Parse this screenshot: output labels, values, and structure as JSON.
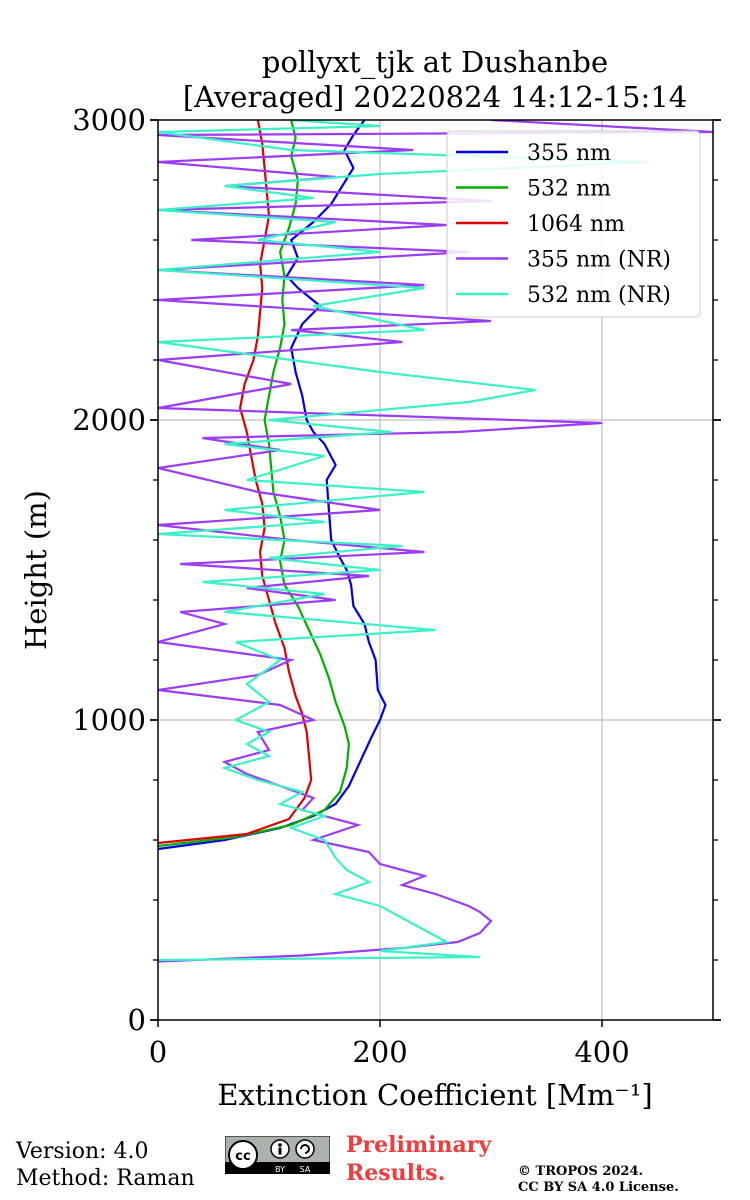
{
  "chart_data": {
    "type": "line",
    "title": [
      "pollyxt_tjk at Dushanbe",
      "[Averaged] 20220824 14:12-15:14"
    ],
    "xlabel": "Extinction Coefficient [Mm⁻¹]",
    "ylabel": "Height (m)",
    "xlim": [
      0,
      500
    ],
    "ylim": [
      0,
      3000
    ],
    "xticks": [
      0,
      200,
      400
    ],
    "yticks": [
      0,
      1000,
      2000,
      3000
    ],
    "grid": true,
    "legend_position": "top-right",
    "series": [
      {
        "name": "355 nm",
        "color": "#0000e6",
        "points": [
          [
            0,
            570
          ],
          [
            60,
            600
          ],
          [
            110,
            640
          ],
          [
            140,
            680
          ],
          [
            160,
            720
          ],
          [
            172,
            780
          ],
          [
            182,
            860
          ],
          [
            192,
            940
          ],
          [
            200,
            1000
          ],
          [
            205,
            1050
          ],
          [
            198,
            1100
          ],
          [
            196,
            1200
          ],
          [
            190,
            1260
          ],
          [
            186,
            1320
          ],
          [
            176,
            1380
          ],
          [
            174,
            1450
          ],
          [
            170,
            1500
          ],
          [
            164,
            1540
          ],
          [
            156,
            1600
          ],
          [
            154,
            1700
          ],
          [
            152,
            1800
          ],
          [
            160,
            1850
          ],
          [
            150,
            1920
          ],
          [
            140,
            1960
          ],
          [
            134,
            2000
          ],
          [
            130,
            2080
          ],
          [
            124,
            2160
          ],
          [
            120,
            2240
          ],
          [
            130,
            2320
          ],
          [
            146,
            2380
          ],
          [
            126,
            2440
          ],
          [
            116,
            2480
          ],
          [
            126,
            2540
          ],
          [
            120,
            2600
          ],
          [
            140,
            2660
          ],
          [
            156,
            2720
          ],
          [
            166,
            2780
          ],
          [
            176,
            2840
          ],
          [
            168,
            2900
          ],
          [
            176,
            2950
          ],
          [
            186,
            3000
          ]
        ]
      },
      {
        "name": "532 nm",
        "color": "#00b000",
        "points": [
          [
            0,
            580
          ],
          [
            70,
            610
          ],
          [
            120,
            650
          ],
          [
            150,
            700
          ],
          [
            164,
            760
          ],
          [
            170,
            840
          ],
          [
            172,
            920
          ],
          [
            168,
            980
          ],
          [
            160,
            1060
          ],
          [
            154,
            1140
          ],
          [
            146,
            1220
          ],
          [
            136,
            1300
          ],
          [
            126,
            1380
          ],
          [
            114,
            1450
          ],
          [
            110,
            1530
          ],
          [
            114,
            1600
          ],
          [
            110,
            1680
          ],
          [
            104,
            1760
          ],
          [
            102,
            1840
          ],
          [
            100,
            1920
          ],
          [
            96,
            2000
          ],
          [
            100,
            2080
          ],
          [
            104,
            2160
          ],
          [
            110,
            2240
          ],
          [
            114,
            2320
          ],
          [
            112,
            2400
          ],
          [
            114,
            2480
          ],
          [
            110,
            2560
          ],
          [
            118,
            2640
          ],
          [
            124,
            2720
          ],
          [
            126,
            2800
          ],
          [
            120,
            2880
          ],
          [
            124,
            2940
          ],
          [
            120,
            3000
          ]
        ]
      },
      {
        "name": "1064 nm",
        "color": "#dd0000",
        "points": [
          [
            0,
            590
          ],
          [
            80,
            620
          ],
          [
            118,
            670
          ],
          [
            132,
            740
          ],
          [
            138,
            800
          ],
          [
            136,
            880
          ],
          [
            134,
            960
          ],
          [
            130,
            1020
          ],
          [
            124,
            1080
          ],
          [
            118,
            1160
          ],
          [
            114,
            1240
          ],
          [
            106,
            1320
          ],
          [
            100,
            1400
          ],
          [
            94,
            1480
          ],
          [
            92,
            1560
          ],
          [
            96,
            1640
          ],
          [
            94,
            1720
          ],
          [
            88,
            1800
          ],
          [
            84,
            1880
          ],
          [
            80,
            1960
          ],
          [
            74,
            2040
          ],
          [
            78,
            2120
          ],
          [
            86,
            2200
          ],
          [
            90,
            2280
          ],
          [
            92,
            2360
          ],
          [
            94,
            2440
          ],
          [
            92,
            2520
          ],
          [
            96,
            2600
          ],
          [
            100,
            2680
          ],
          [
            98,
            2760
          ],
          [
            96,
            2840
          ],
          [
            94,
            2920
          ],
          [
            90,
            3000
          ]
        ]
      },
      {
        "name": "355 nm (NR)",
        "color": "#9b3cf5",
        "points": [
          [
            0,
            195
          ],
          [
            130,
            215
          ],
          [
            220,
            240
          ],
          [
            270,
            260
          ],
          [
            290,
            290
          ],
          [
            300,
            330
          ],
          [
            290,
            360
          ],
          [
            280,
            380
          ],
          [
            250,
            420
          ],
          [
            220,
            450
          ],
          [
            240,
            480
          ],
          [
            200,
            520
          ],
          [
            190,
            560
          ],
          [
            140,
            600
          ],
          [
            180,
            650
          ],
          [
            130,
            700
          ],
          [
            140,
            740
          ],
          [
            110,
            780
          ],
          [
            80,
            820
          ],
          [
            60,
            860
          ],
          [
            100,
            900
          ],
          [
            90,
            960
          ],
          [
            140,
            1000
          ],
          [
            110,
            1050
          ],
          [
            0,
            1100
          ],
          [
            90,
            1150
          ],
          [
            120,
            1200
          ],
          [
            0,
            1260
          ],
          [
            60,
            1320
          ],
          [
            20,
            1360
          ],
          [
            160,
            1400
          ],
          [
            80,
            1440
          ],
          [
            190,
            1480
          ],
          [
            20,
            1520
          ],
          [
            240,
            1560
          ],
          [
            120,
            1600
          ],
          [
            0,
            1650
          ],
          [
            200,
            1700
          ],
          [
            90,
            1760
          ],
          [
            0,
            1840
          ],
          [
            110,
            1900
          ],
          [
            40,
            1940
          ],
          [
            270,
            1960
          ],
          [
            400,
            1990
          ],
          [
            0,
            2040
          ],
          [
            60,
            2080
          ],
          [
            120,
            2120
          ],
          [
            0,
            2200
          ],
          [
            220,
            2260
          ],
          [
            120,
            2300
          ],
          [
            300,
            2330
          ],
          [
            0,
            2400
          ],
          [
            240,
            2450
          ],
          [
            0,
            2500
          ],
          [
            280,
            2560
          ],
          [
            30,
            2600
          ],
          [
            260,
            2650
          ],
          [
            0,
            2700
          ],
          [
            300,
            2730
          ],
          [
            60,
            2780
          ],
          [
            160,
            2810
          ],
          [
            0,
            2860
          ],
          [
            230,
            2900
          ],
          [
            0,
            2950
          ],
          [
            500,
            2960
          ],
          [
            300,
            3000
          ]
        ]
      },
      {
        "name": "532 nm (NR)",
        "color": "#3cf0c8",
        "points": [
          [
            0,
            200
          ],
          [
            290,
            210
          ],
          [
            200,
            230
          ],
          [
            260,
            260
          ],
          [
            240,
            300
          ],
          [
            220,
            340
          ],
          [
            200,
            380
          ],
          [
            160,
            420
          ],
          [
            190,
            460
          ],
          [
            170,
            500
          ],
          [
            160,
            540
          ],
          [
            150,
            600
          ],
          [
            120,
            640
          ],
          [
            150,
            680
          ],
          [
            110,
            720
          ],
          [
            130,
            760
          ],
          [
            90,
            800
          ],
          [
            60,
            840
          ],
          [
            100,
            880
          ],
          [
            80,
            920
          ],
          [
            100,
            960
          ],
          [
            70,
            1000
          ],
          [
            100,
            1060
          ],
          [
            80,
            1120
          ],
          [
            110,
            1200
          ],
          [
            70,
            1260
          ],
          [
            250,
            1300
          ],
          [
            60,
            1360
          ],
          [
            150,
            1420
          ],
          [
            40,
            1460
          ],
          [
            200,
            1500
          ],
          [
            100,
            1540
          ],
          [
            220,
            1580
          ],
          [
            0,
            1620
          ],
          [
            150,
            1660
          ],
          [
            60,
            1700
          ],
          [
            240,
            1760
          ],
          [
            80,
            1800
          ],
          [
            150,
            1880
          ],
          [
            60,
            1920
          ],
          [
            210,
            1960
          ],
          [
            100,
            2000
          ],
          [
            280,
            2060
          ],
          [
            340,
            2100
          ],
          [
            200,
            2160
          ],
          [
            0,
            2260
          ],
          [
            240,
            2300
          ],
          [
            140,
            2380
          ],
          [
            240,
            2440
          ],
          [
            0,
            2500
          ],
          [
            200,
            2560
          ],
          [
            90,
            2600
          ],
          [
            160,
            2660
          ],
          [
            0,
            2700
          ],
          [
            140,
            2740
          ],
          [
            60,
            2780
          ],
          [
            200,
            2820
          ],
          [
            440,
            2860
          ],
          [
            120,
            2900
          ],
          [
            0,
            2960
          ],
          [
            200,
            2980
          ],
          [
            120,
            3000
          ]
        ]
      }
    ]
  },
  "footer": {
    "version": "Version: 4.0",
    "method": "Method: Raman",
    "preliminary_line1": "Preliminary",
    "preliminary_line2": "Results.",
    "copyright_line1": "© TROPOS 2024.",
    "copyright_line2": "CC BY SA 4.0 License.",
    "license_badge": {
      "cc": "cc",
      "by": "BY",
      "sa": "SA"
    }
  }
}
